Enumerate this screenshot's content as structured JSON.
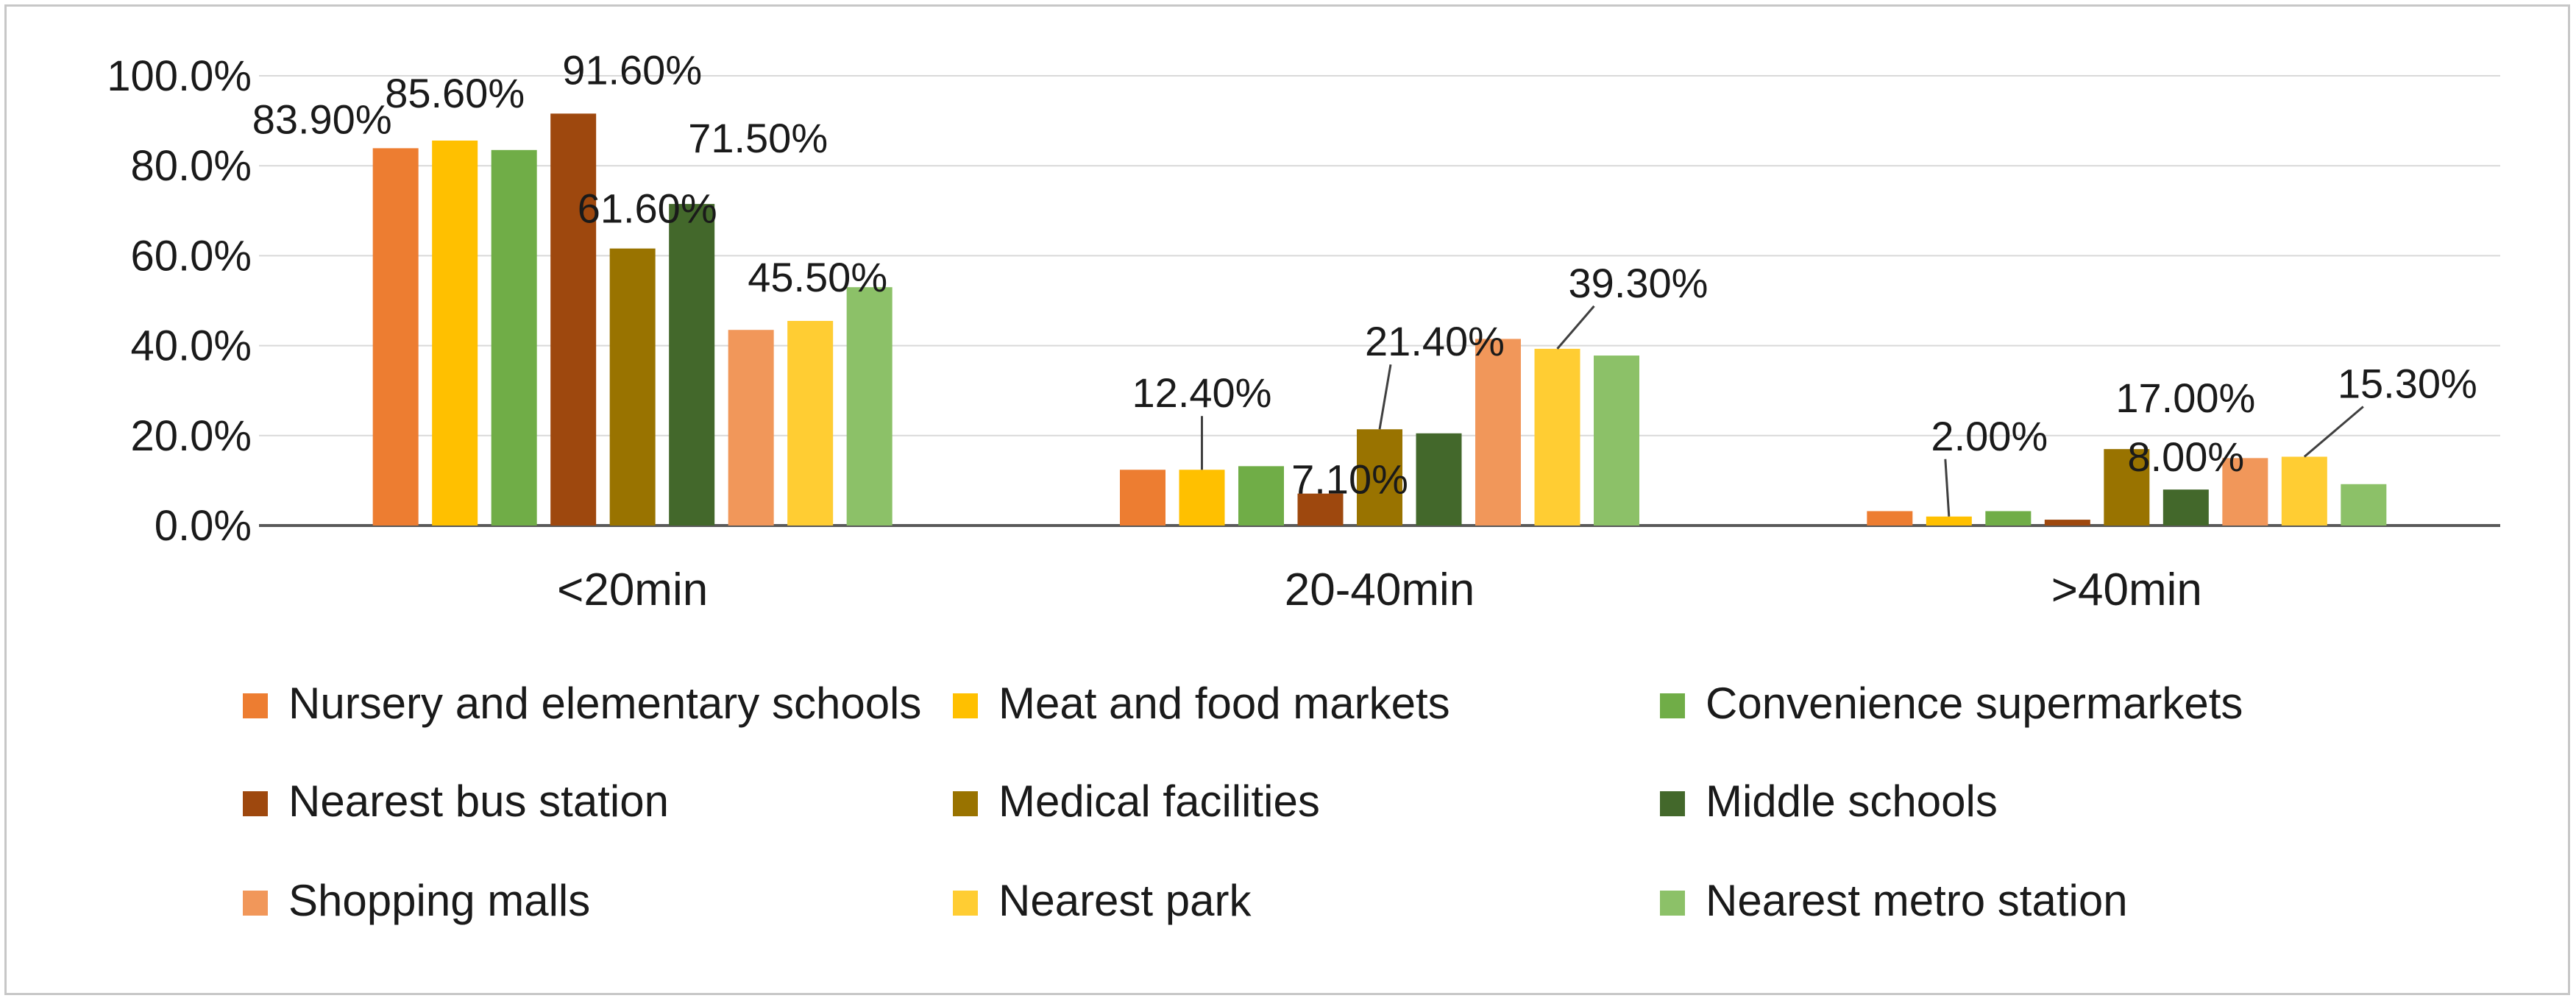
{
  "chart_data": {
    "type": "bar",
    "title": "",
    "xlabel": "",
    "ylabel": "",
    "ylim": [
      0,
      100
    ],
    "y_ticks": [
      "0.0%",
      "20.0%",
      "40.0%",
      "60.0%",
      "80.0%",
      "100.0%"
    ],
    "y_tick_values": [
      0,
      20,
      40,
      60,
      80,
      100
    ],
    "grid": true,
    "legend_position": "bottom",
    "categories": [
      "<20min",
      "20-40min",
      ">40min"
    ],
    "series": [
      {
        "name": "Nursery and elementary schools",
        "color": "#ED7D31",
        "values": [
          83.9,
          12.4,
          3.2
        ]
      },
      {
        "name": "Meat and food markets",
        "color": "#FFC000",
        "values": [
          85.6,
          12.4,
          2.0
        ]
      },
      {
        "name": "Convenience supermarkets",
        "color": "#70AD47",
        "values": [
          83.5,
          13.2,
          3.2
        ]
      },
      {
        "name": "Nearest bus station",
        "color": "#9E480E",
        "values": [
          91.6,
          7.1,
          1.3
        ]
      },
      {
        "name": "Medical facilities",
        "color": "#997300",
        "values": [
          61.6,
          21.4,
          17.0
        ]
      },
      {
        "name": "Middle schools",
        "color": "#43682B",
        "values": [
          71.5,
          20.5,
          8.0
        ]
      },
      {
        "name": "Shopping malls",
        "color": "#F1975A",
        "values": [
          43.5,
          41.5,
          15.0
        ]
      },
      {
        "name": "Nearest park",
        "color": "#FFCD33",
        "values": [
          45.5,
          39.3,
          15.3
        ]
      },
      {
        "name": "Nearest metro station",
        "color": "#8CC168",
        "values": [
          53.0,
          37.8,
          9.2
        ]
      }
    ],
    "data_labels": [
      {
        "series": 0,
        "category": 0,
        "text": "83.90%"
      },
      {
        "series": 1,
        "category": 0,
        "text": "85.60%"
      },
      {
        "series": 3,
        "category": 0,
        "text": "91.60%"
      },
      {
        "series": 4,
        "category": 0,
        "text": "61.60%"
      },
      {
        "series": 5,
        "category": 0,
        "text": "71.50%"
      },
      {
        "series": 7,
        "category": 0,
        "text": "45.50%"
      },
      {
        "series": 1,
        "category": 1,
        "text": "12.40%"
      },
      {
        "series": 3,
        "category": 1,
        "text": "7.10%"
      },
      {
        "series": 4,
        "category": 1,
        "text": "21.40%"
      },
      {
        "series": 7,
        "category": 1,
        "text": "39.30%"
      },
      {
        "series": 1,
        "category": 2,
        "text": "2.00%"
      },
      {
        "series": 4,
        "category": 2,
        "text": "17.00%"
      },
      {
        "series": 5,
        "category": 2,
        "text": "8.00%"
      },
      {
        "series": 7,
        "category": 2,
        "text": "15.30%"
      }
    ]
  }
}
